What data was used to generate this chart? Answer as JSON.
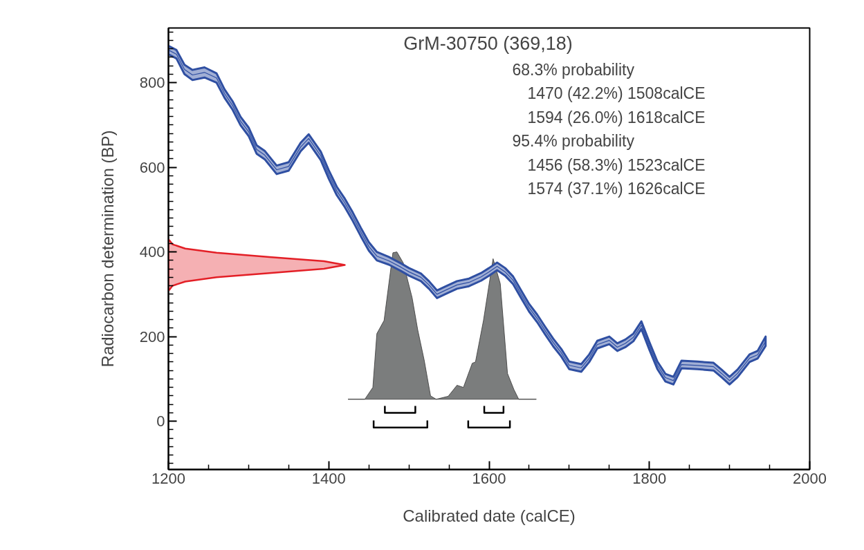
{
  "chart_data": {
    "type": "line",
    "title": "GrM-30750 (369,18)",
    "xlabel": "Calibrated date (calCE)",
    "ylabel": "Radiocarbon determination (BP)",
    "annotations": [
      "68.3% probability",
      "1470 (42.2%) 1508calCE",
      "1594 (26.0%) 1618calCE",
      "95.4% probability",
      "1456 (58.3%) 1523calCE",
      "1574 (37.1%) 1626calCE"
    ],
    "xlim": [
      1200,
      2000
    ],
    "ylim": [
      -114,
      929
    ],
    "xticks": [
      1200,
      {
        "value": 1250,
        "label": null
      },
      {
        "value": 1300,
        "label": null
      },
      {
        "value": 1350,
        "label": null
      },
      1400,
      {
        "value": 1450,
        "label": null
      },
      {
        "value": 1500,
        "label": null
      },
      {
        "value": 1550,
        "label": null
      },
      1600,
      {
        "value": 1650,
        "label": null
      },
      {
        "value": 1700,
        "label": null
      },
      {
        "value": 1750,
        "label": null
      },
      1800,
      {
        "value": 1850,
        "label": null
      },
      {
        "value": 1900,
        "label": null
      },
      {
        "value": 1950,
        "label": null
      },
      2000
    ],
    "yticks": [
      {
        "value": -100,
        "label": null
      },
      {
        "value": -80,
        "label": null
      },
      {
        "value": -60,
        "label": null
      },
      {
        "value": -40,
        "label": null
      },
      {
        "value": -20,
        "label": null
      },
      0,
      {
        "value": 20,
        "label": null
      },
      {
        "value": 40,
        "label": null
      },
      {
        "value": 60,
        "label": null
      },
      {
        "value": 80,
        "label": null
      },
      {
        "value": 100,
        "label": null
      },
      {
        "value": 120,
        "label": null
      },
      {
        "value": 140,
        "label": null
      },
      {
        "value": 160,
        "label": null
      },
      {
        "value": 180,
        "label": null
      },
      200,
      {
        "value": 220,
        "label": null
      },
      {
        "value": 240,
        "label": null
      },
      {
        "value": 260,
        "label": null
      },
      {
        "value": 280,
        "label": null
      },
      {
        "value": 300,
        "label": null
      },
      {
        "value": 320,
        "label": null
      },
      {
        "value": 340,
        "label": null
      },
      {
        "value": 360,
        "label": null
      },
      {
        "value": 380,
        "label": null
      },
      400,
      {
        "value": 420,
        "label": null
      },
      {
        "value": 440,
        "label": null
      },
      {
        "value": 460,
        "label": null
      },
      {
        "value": 480,
        "label": null
      },
      {
        "value": 500,
        "label": null
      },
      {
        "value": 520,
        "label": null
      },
      {
        "value": 540,
        "label": null
      },
      {
        "value": 560,
        "label": null
      },
      {
        "value": 580,
        "label": null
      },
      600,
      {
        "value": 620,
        "label": null
      },
      {
        "value": 640,
        "label": null
      },
      {
        "value": 660,
        "label": null
      },
      {
        "value": 680,
        "label": null
      },
      {
        "value": 700,
        "label": null
      },
      {
        "value": 720,
        "label": null
      },
      {
        "value": 740,
        "label": null
      },
      {
        "value": 760,
        "label": null
      },
      {
        "value": 780,
        "label": null
      },
      800,
      {
        "value": 820,
        "label": null
      },
      {
        "value": 840,
        "label": null
      },
      {
        "value": 860,
        "label": null
      },
      {
        "value": 880,
        "label": null
      },
      {
        "value": 900,
        "label": null
      },
      {
        "value": 920,
        "label": null
      }
    ],
    "grid": false,
    "marker": "none",
    "line_style": "solid",
    "series": [
      {
        "color": "#2f4fa2",
        "x": [
          1200,
          1210,
          1220,
          1230,
          1245,
          1260,
          1270,
          1280,
          1290,
          1300,
          1310,
          1320,
          1335,
          1350,
          1365,
          1375,
          1390,
          1400,
          1410,
          1420,
          1430,
          1440,
          1450,
          1460,
          1475,
          1490,
          1500,
          1515,
          1525,
          1535,
          1545,
          1560,
          1575,
          1590,
          1600,
          1610,
          1620,
          1630,
          1640,
          1650,
          1660,
          1670,
          1680,
          1690,
          1700,
          1715,
          1725,
          1735,
          1750,
          1760,
          1770,
          1780,
          1790,
          1800,
          1810,
          1820,
          1830,
          1840,
          1860,
          1880,
          1890,
          1900,
          1910,
          1925,
          1935,
          1945
        ],
        "values": [
          877,
          867,
          831,
          818,
          824,
          811,
          774,
          746,
          709,
          684,
          642,
          629,
          594,
          602,
          648,
          668,
          627,
          583,
          544,
          516,
          483,
          447,
          413,
          390,
          379,
          364,
          353,
          340,
          322,
          300,
          309,
          322,
          328,
          341,
          353,
          366,
          353,
          333,
          300,
          268,
          243,
          214,
          186,
          162,
          132,
          126,
          149,
          181,
          191,
          175,
          184,
          198,
          227,
          178,
          132,
          103,
          96,
          134,
          132,
          129,
          113,
          96,
          113,
          149,
          157,
          189
        ],
        "lower": [
          867,
          857,
          820,
          806,
          812,
          800,
          764,
          736,
          699,
          674,
          632,
          619,
          584,
          592,
          638,
          658,
          617,
          573,
          534,
          506,
          473,
          437,
          403,
          380,
          370,
          355,
          344,
          331,
          313,
          291,
          300,
          313,
          319,
          332,
          344,
          357,
          344,
          324,
          291,
          259,
          234,
          205,
          177,
          153,
          123,
          117,
          140,
          172,
          182,
          166,
          175,
          189,
          218,
          169,
          123,
          94,
          87,
          125,
          123,
          120,
          104,
          87,
          104,
          140,
          148,
          178
        ],
        "upper": [
          887,
          877,
          842,
          830,
          836,
          822,
          784,
          756,
          719,
          694,
          652,
          639,
          604,
          612,
          658,
          678,
          637,
          593,
          554,
          526,
          493,
          457,
          423,
          400,
          388,
          373,
          362,
          349,
          331,
          309,
          318,
          331,
          337,
          350,
          362,
          375,
          362,
          342,
          309,
          277,
          252,
          223,
          195,
          171,
          141,
          135,
          158,
          190,
          200,
          184,
          193,
          207,
          236,
          187,
          141,
          112,
          105,
          143,
          141,
          138,
          122,
          105,
          122,
          158,
          166,
          200
        ]
      },
      {
        "type": "area",
        "color": "#e31f26",
        "x": [
          1200,
          1201,
          1205,
          1221,
          1260,
          1326,
          1394,
          1420,
          1394,
          1326,
          1260,
          1221,
          1205,
          1201,
          1200
        ],
        "values": [
          310,
          310,
          320,
          330,
          340,
          350,
          360,
          369,
          378,
          388,
          398,
          408,
          418,
          428,
          428
        ]
      },
      {
        "type": "area",
        "color": "#7b7d7d",
        "x": [
          1424,
          1445,
          1455,
          1460,
          1469,
          1480,
          1485,
          1493,
          1504,
          1511,
          1519,
          1527,
          1534,
          1549,
          1560,
          1568,
          1579,
          1583,
          1593,
          1605,
          1614,
          1623,
          1631,
          1637,
          1659
        ],
        "values": [
          52,
          52,
          80,
          207,
          238,
          398,
          400,
          374,
          292,
          216,
          145,
          60,
          52,
          59,
          85,
          80,
          137,
          140,
          238,
          384,
          325,
          113,
          75,
          52,
          52
        ]
      },
      {
        "type": "line",
        "color": "#000000",
        "x": [
          1470,
          1470,
          1508,
          1508,
          null,
          1594,
          1594,
          1618,
          1618
        ],
        "values": [
          36,
          20,
          20,
          36,
          null,
          36,
          20,
          20,
          36
        ]
      },
      {
        "type": "line",
        "color": "#000000",
        "x": [
          1456,
          1456,
          1523,
          1523,
          null,
          1574,
          1574,
          1626,
          1626
        ],
        "values": [
          2,
          -15,
          -15,
          2,
          null,
          2,
          -15,
          -15,
          2
        ]
      }
    ]
  }
}
